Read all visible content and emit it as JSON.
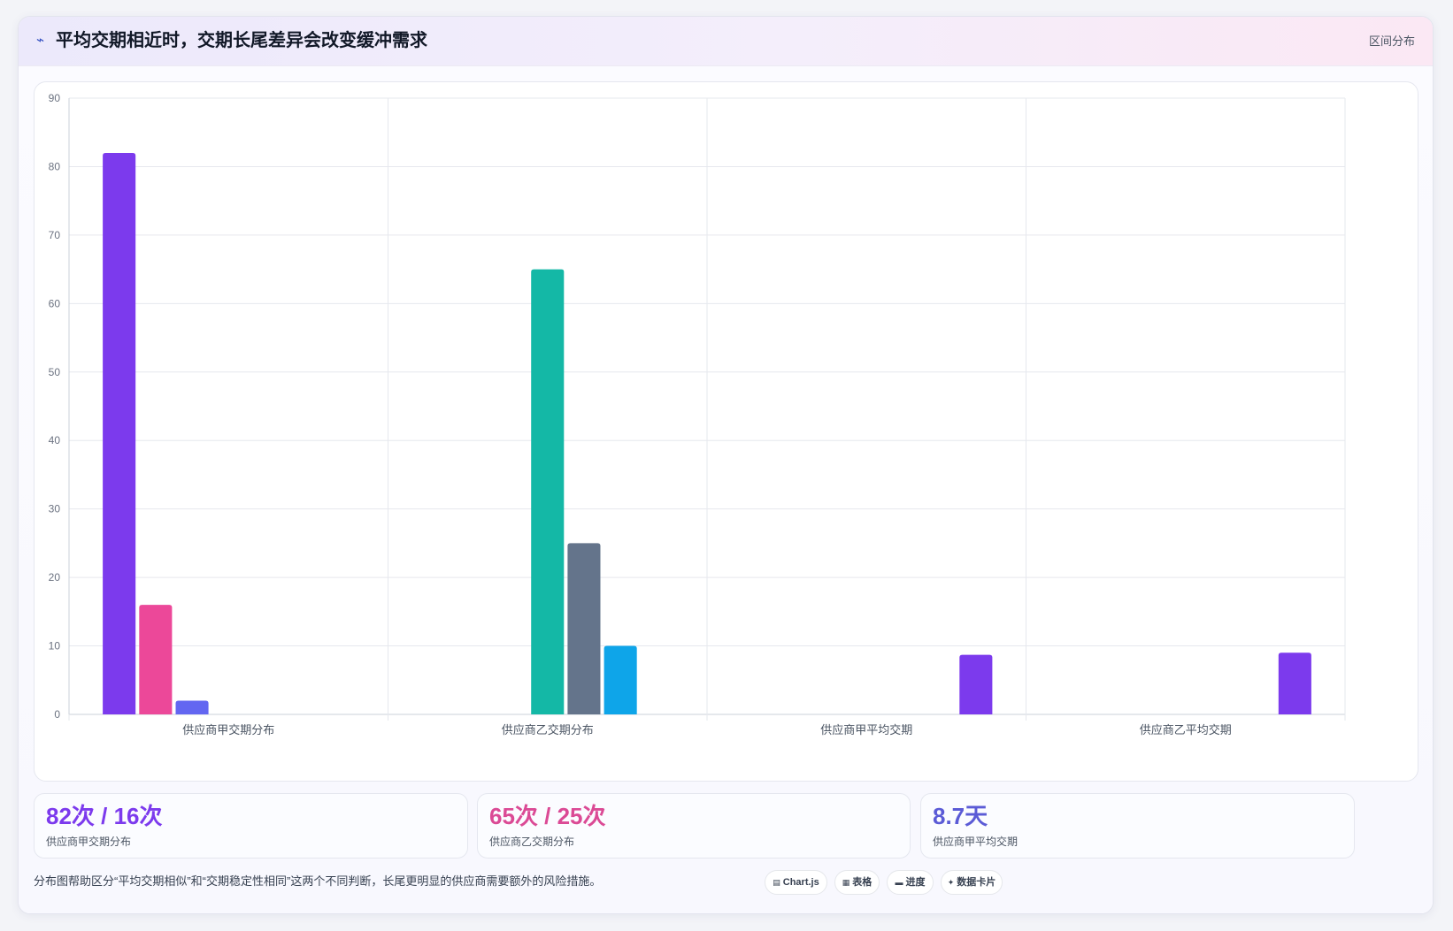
{
  "header": {
    "icon": "chart-line-icon",
    "title": "平均交期相近时，交期长尾差异会改变缓冲需求",
    "tag": "区间分布"
  },
  "chart_data": {
    "type": "bar",
    "categories": [
      "供应商甲交期分布",
      "供应商乙交期分布",
      "供应商甲平均交期",
      "供应商乙平均交期"
    ],
    "series": [
      {
        "color": "#7c3aed",
        "values": [
          82,
          null,
          null,
          null
        ]
      },
      {
        "color": "#ec4899",
        "values": [
          16,
          null,
          null,
          null
        ]
      },
      {
        "color": "#6366f1",
        "values": [
          2,
          null,
          null,
          null
        ]
      },
      {
        "color": "#14b8a6",
        "values": [
          null,
          65,
          null,
          null
        ]
      },
      {
        "color": "#64748b",
        "values": [
          null,
          25,
          null,
          null
        ]
      },
      {
        "color": "#0ea5e9",
        "values": [
          null,
          10,
          null,
          null
        ]
      },
      {
        "color": "#7c3aed",
        "values": [
          null,
          null,
          8.7,
          9
        ]
      }
    ],
    "yticks": [
      0,
      10,
      20,
      30,
      40,
      50,
      60,
      70,
      80,
      90
    ],
    "ylim": [
      0,
      90
    ],
    "grid": true,
    "legend": "none",
    "title": "",
    "xlabel": "",
    "ylabel": ""
  },
  "stats": [
    {
      "value": "82次 / 16次",
      "label": "供应商甲交期分布",
      "color": "#7c3aed"
    },
    {
      "value": "65次 / 25次",
      "label": "供应商乙交期分布",
      "color": "#db4a95"
    },
    {
      "value": "8.7天",
      "label": "供应商甲平均交期",
      "color": "#5b5bd6"
    }
  ],
  "footnote": "分布图帮助区分“平均交期相似”和“交期稳定性相同”这两个不同判断，长尾更明显的供应商需要额外的风险措施。",
  "chips": [
    {
      "icon": "chart-icon",
      "glyph": "▤",
      "label": "Chart.js"
    },
    {
      "icon": "table-icon",
      "glyph": "▦",
      "label": "表格"
    },
    {
      "icon": "progress-icon",
      "glyph": "▬",
      "label": "进度"
    },
    {
      "icon": "sparkle-icon",
      "glyph": "✦",
      "label": "数据卡片"
    }
  ]
}
